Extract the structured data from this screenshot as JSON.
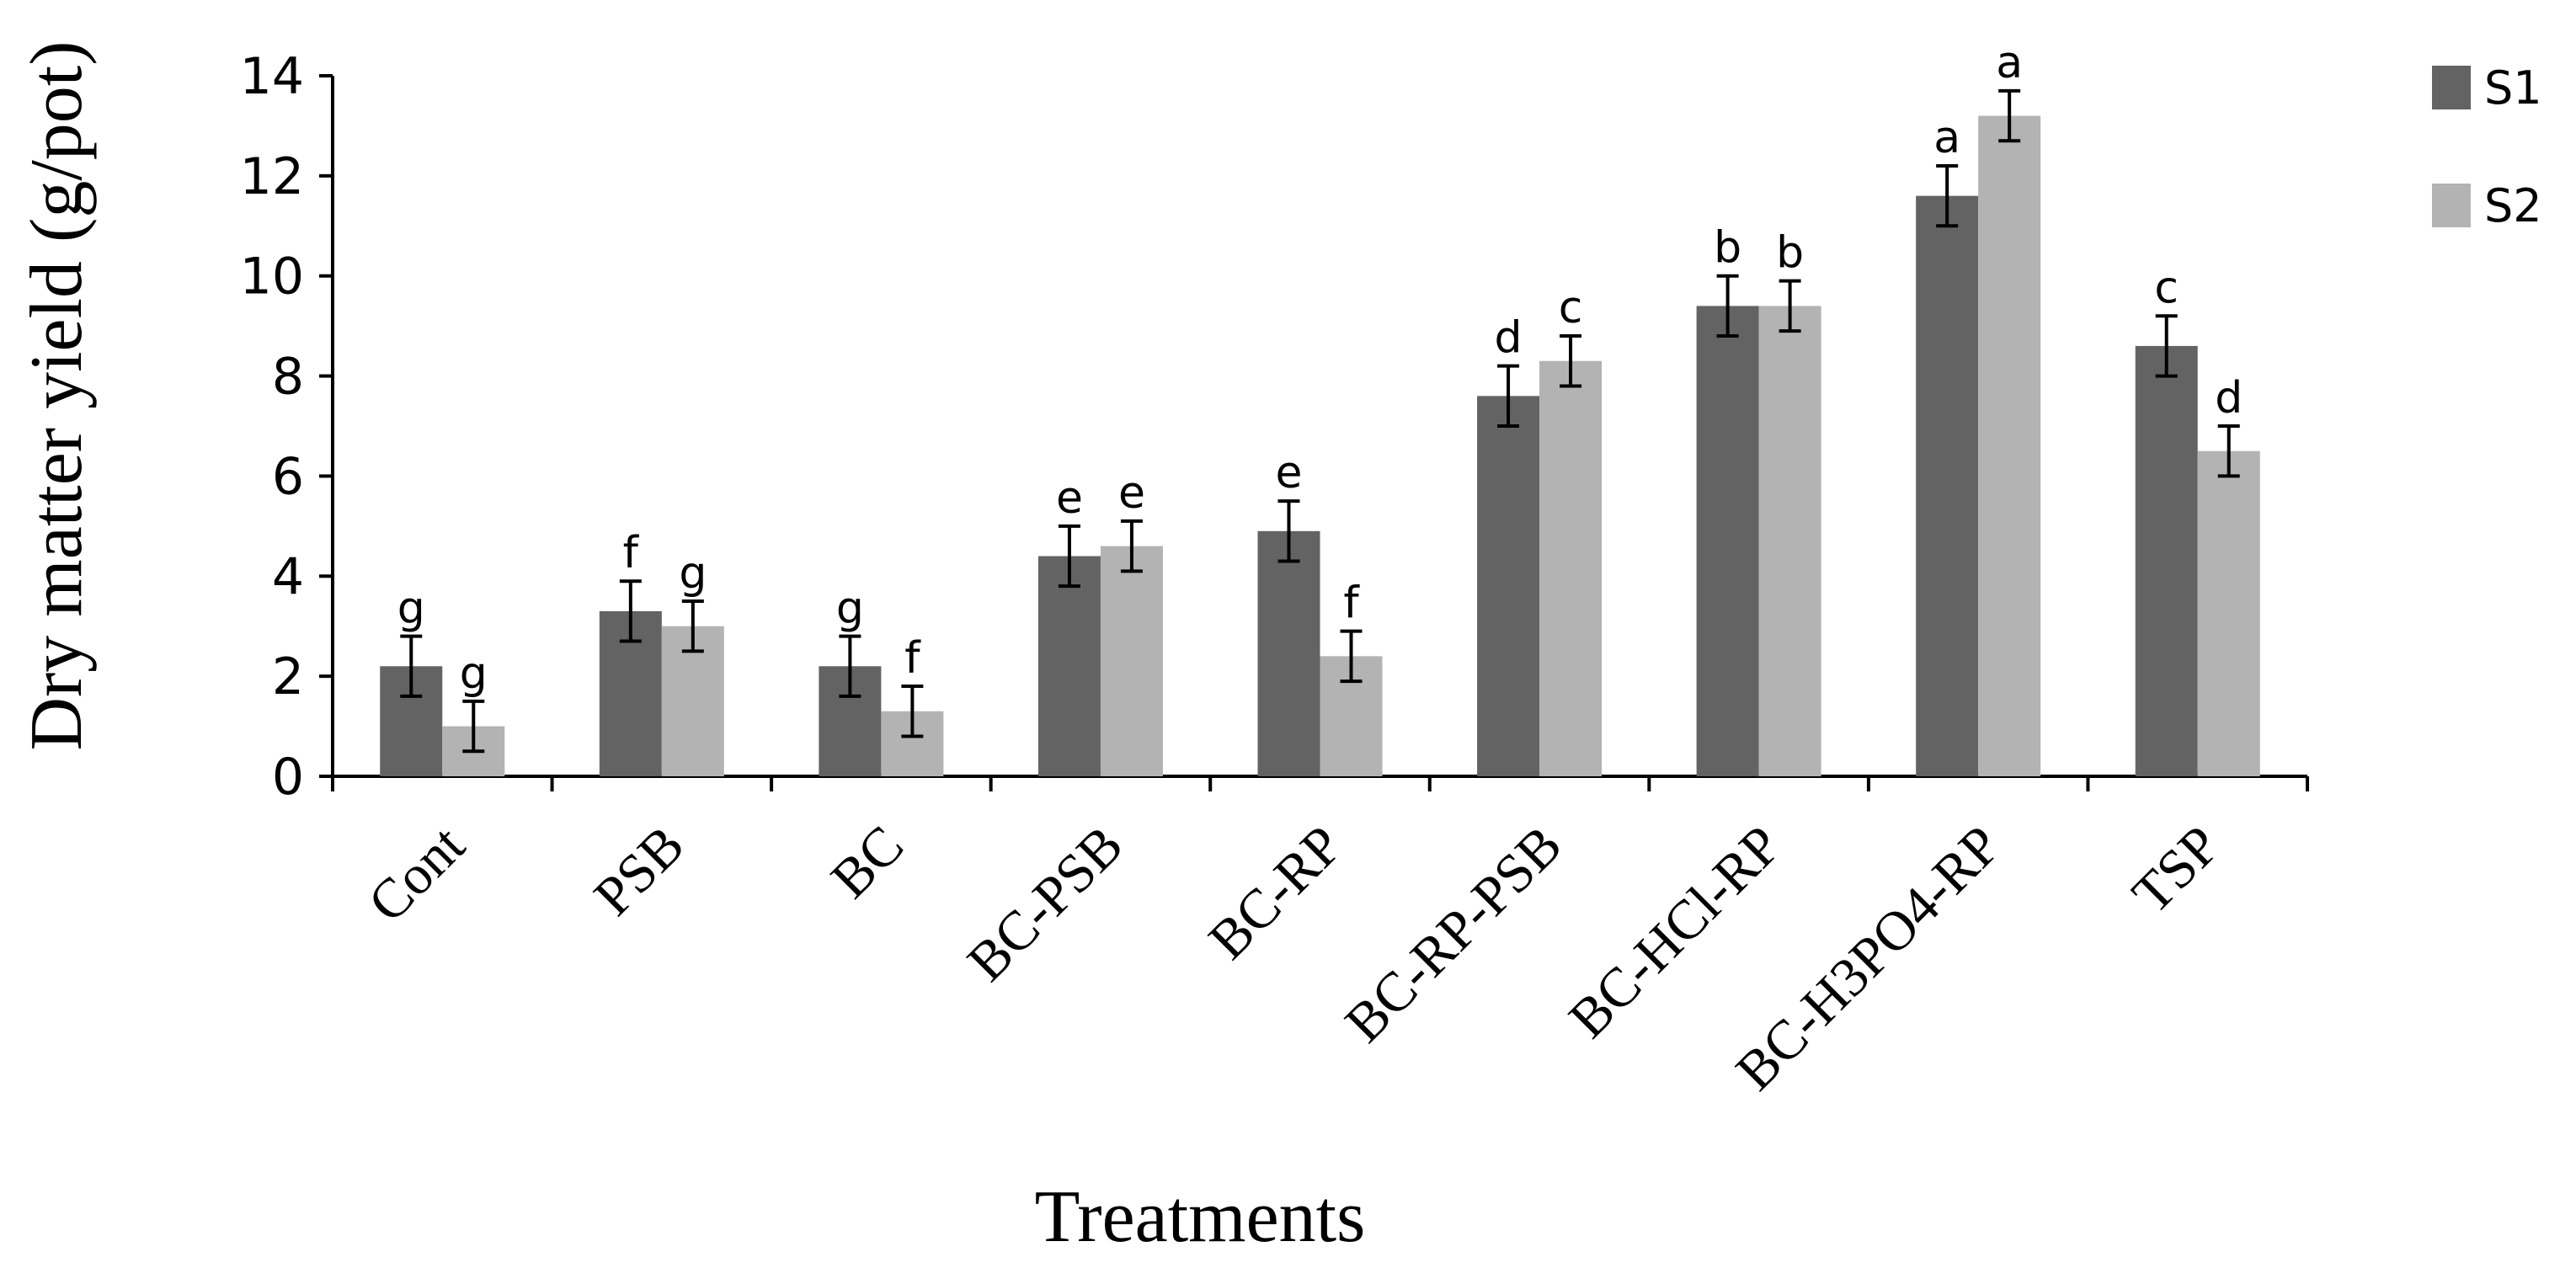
{
  "chart_data": {
    "type": "bar",
    "title": "",
    "xlabel": "Treatments",
    "ylabel": "Dry matter yield (g/pot)",
    "ylim": [
      0,
      14
    ],
    "yticks": [
      0,
      2,
      4,
      6,
      8,
      10,
      12,
      14
    ],
    "grid": false,
    "legend_position": "top-right",
    "categories": [
      "Cont",
      "PSB",
      "BC",
      "BC-PSB",
      "BC-RP",
      "BC-RP-PSB",
      "BC-HCl-RP",
      "BC-H3PO4-RP",
      "TSP"
    ],
    "series": [
      {
        "name": "S1",
        "color": "#636363",
        "values": [
          2.2,
          3.3,
          2.2,
          4.4,
          4.9,
          7.6,
          9.4,
          11.6,
          8.6
        ],
        "errors": [
          0.6,
          0.6,
          0.6,
          0.6,
          0.6,
          0.6,
          0.6,
          0.6,
          0.6
        ],
        "labels": [
          "g",
          "f",
          "g",
          "e",
          "e",
          "d",
          "b",
          "a",
          "c"
        ]
      },
      {
        "name": "S2",
        "color": "#b3b3b3",
        "values": [
          1.0,
          3.0,
          1.3,
          4.6,
          2.4,
          8.3,
          9.4,
          13.2,
          6.5
        ],
        "errors": [
          0.5,
          0.5,
          0.5,
          0.5,
          0.5,
          0.5,
          0.5,
          0.5,
          0.5
        ],
        "labels": [
          "g",
          "g",
          "f",
          "e",
          "f",
          "c",
          "b",
          "a",
          "d"
        ]
      }
    ]
  }
}
